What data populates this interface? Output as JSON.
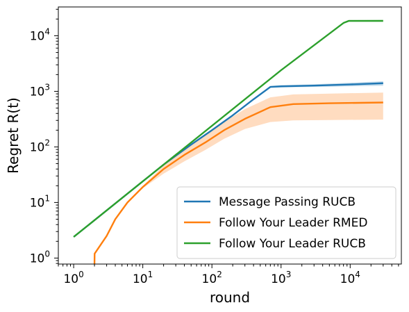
{
  "chart_data": {
    "type": "line",
    "xlabel": "round",
    "ylabel": "Regret R(t)",
    "xscale": "log",
    "yscale": "log",
    "xlim": [
      0.6,
      55000
    ],
    "ylim": [
      0.78,
      33000
    ],
    "x_ticks": [
      {
        "base": "10",
        "exp": "0",
        "value": 1
      },
      {
        "base": "10",
        "exp": "1",
        "value": 10
      },
      {
        "base": "10",
        "exp": "2",
        "value": 100
      },
      {
        "base": "10",
        "exp": "3",
        "value": 1000
      },
      {
        "base": "10",
        "exp": "4",
        "value": 10000
      }
    ],
    "y_ticks": [
      {
        "base": "10",
        "exp": "0",
        "value": 1
      },
      {
        "base": "10",
        "exp": "1",
        "value": 10
      },
      {
        "base": "10",
        "exp": "2",
        "value": 100
      },
      {
        "base": "10",
        "exp": "3",
        "value": 1000
      },
      {
        "base": "10",
        "exp": "4",
        "value": 10000
      }
    ],
    "grid": false,
    "legend_position": "lower-right",
    "series": [
      {
        "name": "Message Passing RUCB",
        "color": "#1f77b4",
        "x": [
          1,
          2,
          5,
          10,
          20,
          50,
          100,
          200,
          400,
          700,
          1000,
          3000,
          10000,
          30000
        ],
        "y": [
          2.4,
          4.8,
          12,
          24,
          48,
          110,
          200,
          370,
          720,
          1200,
          1230,
          1270,
          1330,
          1400
        ],
        "lower": [
          2.4,
          4.8,
          12,
          24,
          48,
          108,
          196,
          360,
          700,
          1160,
          1180,
          1200,
          1230,
          1260
        ],
        "upper": [
          2.4,
          4.8,
          12,
          24,
          48,
          112,
          205,
          380,
          740,
          1250,
          1290,
          1340,
          1430,
          1520
        ]
      },
      {
        "name": "Follow Your Leader RMED",
        "color": "#ff7f0e",
        "band_color": "#ffdcc0",
        "x": [
          2,
          2.01,
          3,
          4,
          6,
          10,
          20,
          40,
          80,
          150,
          300,
          700,
          1500,
          5000,
          30000
        ],
        "y": [
          0.78,
          1.2,
          2.5,
          5,
          10,
          19,
          40,
          72,
          120,
          200,
          320,
          520,
          590,
          610,
          630
        ],
        "lower": [
          0.78,
          1.2,
          2.5,
          5,
          10,
          18,
          33,
          55,
          88,
          140,
          210,
          280,
          300,
          305,
          310
        ],
        "upper": [
          0.78,
          1.2,
          2.5,
          5,
          10,
          20,
          46,
          88,
          160,
          280,
          480,
          780,
          880,
          910,
          950
        ]
      },
      {
        "name": "Follow Your Leader RUCB",
        "color": "#2ca02c",
        "x": [
          1,
          10,
          100,
          1000,
          8000,
          9500,
          30000
        ],
        "y": [
          2.4,
          24,
          240,
          2400,
          17000,
          18500,
          18500
        ],
        "lower": [
          2.4,
          24,
          240,
          2400,
          16500,
          17800,
          17800
        ],
        "upper": [
          2.4,
          24,
          240,
          2400,
          17500,
          19300,
          19500
        ]
      }
    ]
  }
}
